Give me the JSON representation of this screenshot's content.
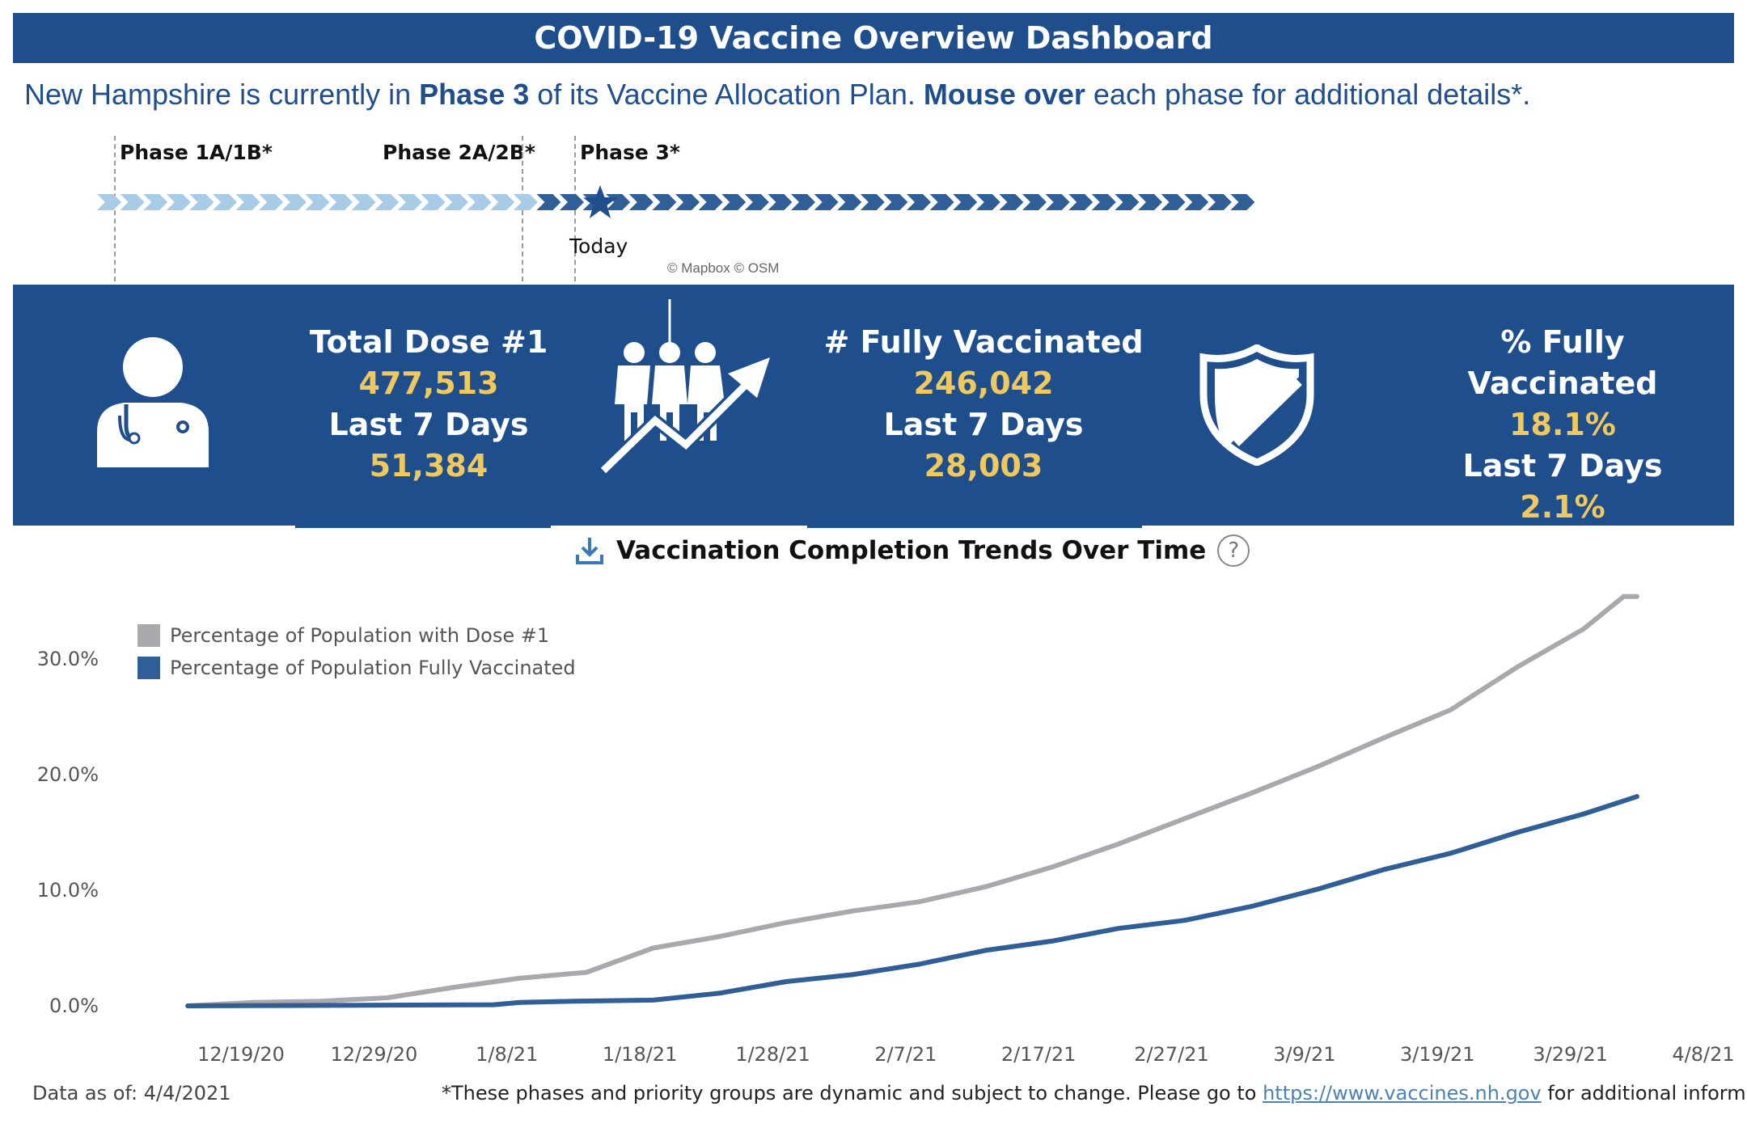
{
  "header": {
    "title": "COVID-19 Vaccine Overview Dashboard"
  },
  "phase_statement": {
    "prefix": "New Hampshire is currently in ",
    "phase": "Phase 3",
    "middle": " of its Vaccine Allocation Plan. ",
    "mouse_over": "Mouse over",
    "suffix": " each phase for additional details*."
  },
  "timeline": {
    "phases": [
      "Phase 1A/1B*",
      "Phase 2A/2B*",
      "Phase 3*"
    ],
    "today_label": "Today",
    "attribution": "© Mapbox © OSM"
  },
  "kpis": {
    "total_dose1": {
      "label": "Total Dose #1",
      "value": "477,513",
      "sub_label": "Last 7 Days",
      "sub_value": "51,384"
    },
    "fully_vaccinated": {
      "label": "# Fully Vaccinated",
      "value": "246,042",
      "sub_label": "Last 7 Days",
      "sub_value": "28,003"
    },
    "pct_fully_vaccinated": {
      "label": "% Fully Vaccinated",
      "value": "18.1%",
      "sub_label": "Last 7 Days",
      "sub_value": "2.1%"
    }
  },
  "trend": {
    "title": "Vaccination Completion Trends Over Time",
    "help": "?"
  },
  "chart_data": {
    "type": "line",
    "x_tick_labels": [
      "12/19/20",
      "12/29/20",
      "1/8/21",
      "1/18/21",
      "1/28/21",
      "2/7/21",
      "2/17/21",
      "2/27/21",
      "3/9/21",
      "3/19/21",
      "3/29/21",
      "4/8/21"
    ],
    "y_tick_labels": [
      "0.0%",
      "10.0%",
      "20.0%",
      "30.0%"
    ],
    "ylim": [
      0,
      36
    ],
    "grid": false,
    "legend_position": "top-left",
    "series": [
      {
        "name": "Percentage of Population with Dose #1",
        "color": "#a9a9ad",
        "points": [
          [
            "12/15/20",
            0.0
          ],
          [
            "12/20/20",
            0.3
          ],
          [
            "12/25/20",
            0.4
          ],
          [
            "12/30/20",
            0.7
          ],
          [
            "1/4/21",
            1.6
          ],
          [
            "1/9/21",
            2.4
          ],
          [
            "1/14/21",
            2.9
          ],
          [
            "1/19/21",
            5.0
          ],
          [
            "1/24/21",
            6.0
          ],
          [
            "1/29/21",
            7.2
          ],
          [
            "2/3/21",
            8.2
          ],
          [
            "2/8/21",
            9.0
          ],
          [
            "2/13/21",
            10.3
          ],
          [
            "2/18/21",
            12.0
          ],
          [
            "2/23/21",
            14.0
          ],
          [
            "2/28/21",
            16.2
          ],
          [
            "3/5/21",
            18.4
          ],
          [
            "3/10/21",
            20.7
          ],
          [
            "3/15/21",
            23.2
          ],
          [
            "3/20/21",
            25.6
          ],
          [
            "3/25/21",
            29.3
          ],
          [
            "3/30/21",
            32.6
          ],
          [
            "4/2/21",
            35.4
          ],
          [
            "4/3/21",
            35.4
          ]
        ]
      },
      {
        "name": "Percentage of Population Fully Vaccinated",
        "color": "#2f5f96",
        "points": [
          [
            "12/15/20",
            0.0
          ],
          [
            "1/7/21",
            0.1
          ],
          [
            "1/9/21",
            0.3
          ],
          [
            "1/13/21",
            0.4
          ],
          [
            "1/19/21",
            0.5
          ],
          [
            "1/24/21",
            1.1
          ],
          [
            "1/29/21",
            2.1
          ],
          [
            "2/3/21",
            2.7
          ],
          [
            "2/8/21",
            3.6
          ],
          [
            "2/13/21",
            4.8
          ],
          [
            "2/18/21",
            5.6
          ],
          [
            "2/23/21",
            6.7
          ],
          [
            "2/28/21",
            7.4
          ],
          [
            "3/5/21",
            8.6
          ],
          [
            "3/10/21",
            10.1
          ],
          [
            "3/15/21",
            11.8
          ],
          [
            "3/20/21",
            13.2
          ],
          [
            "3/25/21",
            15.0
          ],
          [
            "3/30/21",
            16.6
          ],
          [
            "4/3/21",
            18.1
          ]
        ]
      }
    ]
  },
  "footer": {
    "data_as_of": "Data as of: 4/4/2021",
    "disclaimer_prefix": "*These phases and priority groups are dynamic and subject to change. Please go to ",
    "link_text": "https://www.vaccines.nh.gov",
    "disclaimer_suffix": " for additional information."
  }
}
